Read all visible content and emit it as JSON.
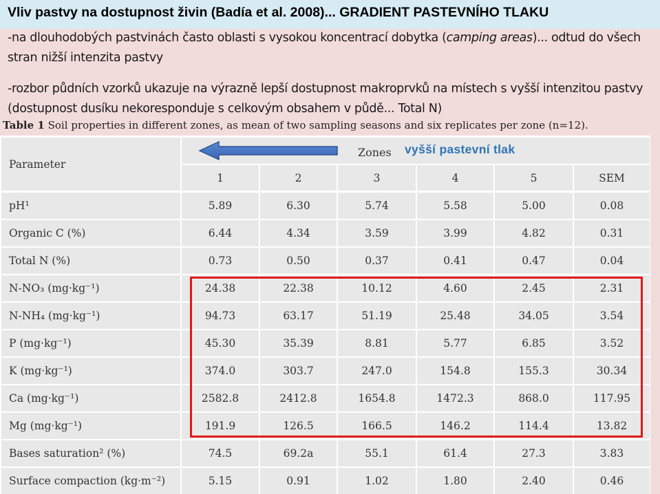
{
  "title": "Vliv pastvy na dostupnost živin (Badía et al. 2008)... GRADIENT PASTEVNÍHO TLAKU",
  "paragraph1": {
    "part1": "-na dlouhodobých pastvinách často oblasti s vysokou koncentrací dobytka (",
    "italic": "camping areas",
    "part2": ")... odtud do všech stran nižší intenzita pastvy"
  },
  "paragraph2": "-rozbor půdních vzorků ukazuje na výrazně lepší dostupnost makroprvků na místech s vyšší intenzitou pastvy (dostupnost dusíku nekoresponduje s celkovým obsahem v půdě... Total N)",
  "caption": {
    "label": "Table 1",
    "text": "Soil properties in different zones, as mean of two sampling seasons and six replicates per zone (n=12)."
  },
  "annotation": {
    "arrow_direction": "left",
    "arrow_color": "#4472c4",
    "text": "vyšší pastevní tlak",
    "text_color": "#2e74b5",
    "highlight_color": "#e01919"
  },
  "table": {
    "parameter_header": "Parameter",
    "zones_header": "Zones",
    "columns": [
      "1",
      "2",
      "3",
      "4",
      "5",
      "SEM"
    ],
    "rows": [
      {
        "name": "pH¹",
        "values": [
          "5.89",
          "6.30",
          "5.74",
          "5.58",
          "5.00",
          "0.08"
        ]
      },
      {
        "name": "Organic C (%)",
        "values": [
          "6.44",
          "4.34",
          "3.59",
          "3.99",
          "4.82",
          "0.31"
        ]
      },
      {
        "name": "Total N (%)",
        "values": [
          "0.73",
          "0.50",
          "0.37",
          "0.41",
          "0.47",
          "0.04"
        ]
      },
      {
        "name": "N-NO₃ (mg·kg⁻¹)",
        "values": [
          "24.38",
          "22.38",
          "10.12",
          "4.60",
          "2.45",
          "2.31"
        ]
      },
      {
        "name": "N-NH₄ (mg·kg⁻¹)",
        "values": [
          "94.73",
          "63.17",
          "51.19",
          "25.48",
          "34.05",
          "3.54"
        ]
      },
      {
        "name": "P (mg·kg⁻¹)",
        "values": [
          "45.30",
          "35.39",
          "8.81",
          "5.77",
          "6.85",
          "3.52"
        ]
      },
      {
        "name": "K (mg·kg⁻¹)",
        "values": [
          "374.0",
          "303.7",
          "247.0",
          "154.8",
          "155.3",
          "30.34"
        ]
      },
      {
        "name": "Ca (mg·kg⁻¹)",
        "values": [
          "2582.8",
          "2412.8",
          "1654.8",
          "1472.3",
          "868.0",
          "117.95"
        ]
      },
      {
        "name": "Mg (mg·kg⁻¹)",
        "values": [
          "191.9",
          "126.5",
          "166.5",
          "146.2",
          "114.4",
          "13.82"
        ]
      },
      {
        "name": "Bases saturation² (%)",
        "values": [
          "74.5",
          "69.2a",
          "55.1",
          "61.4",
          "27.3",
          "3.83"
        ]
      },
      {
        "name": "Surface compaction (kg·m⁻²)",
        "values": [
          "5.15",
          "0.91",
          "1.02",
          "1.80",
          "2.40",
          "0.46"
        ]
      }
    ]
  }
}
